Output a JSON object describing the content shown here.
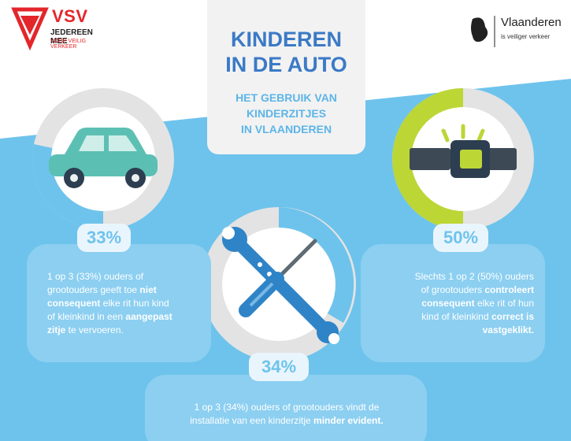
{
  "logos": {
    "vsv": {
      "name": "VSV",
      "line1": "JEDEREEN MEE",
      "line2": "VOOR VEILIG VERKEER"
    },
    "vlaanderen": {
      "name": "Vlaanderen",
      "tagline": "is veiliger verkeer"
    }
  },
  "title": {
    "main": [
      "KINDEREN",
      "IN DE AUTO"
    ],
    "sub": [
      "HET GEBRUIK VAN",
      "KINDERZITJES",
      "IN VLAANDEREN"
    ]
  },
  "stats": {
    "left": {
      "value": 33,
      "label": "33%",
      "text": [
        [
          {
            "t": "1 op 3 (33%) ouders of"
          }
        ],
        [
          {
            "t": "grootouders geeft toe "
          },
          {
            "t": "niet",
            "b": true
          }
        ],
        [
          {
            "t": "consequent",
            "b": true
          },
          {
            "t": " elke rit hun kind"
          }
        ],
        [
          {
            "t": "of kleinkind in een "
          },
          {
            "t": "aangepast",
            "b": true
          }
        ],
        [
          {
            "t": "zitje",
            "b": true
          },
          {
            "t": " te vervoeren."
          }
        ]
      ]
    },
    "right": {
      "value": 50,
      "label": "50%",
      "text": [
        [
          {
            "t": "Slechts 1 op 2 (50%) ouders"
          }
        ],
        [
          {
            "t": "of grootouders "
          },
          {
            "t": "controleert",
            "b": true
          }
        ],
        [
          {
            "t": "consequent",
            "b": true
          },
          {
            "t": " elke rit of hun"
          }
        ],
        [
          {
            "t": "kind of kleinkind "
          },
          {
            "t": "correct is",
            "b": true
          }
        ],
        [
          {
            "t": "vastgeklikt.",
            "b": true
          }
        ]
      ]
    },
    "bottom": {
      "value": 34,
      "label": "34%",
      "text": [
        [
          {
            "t": "1 op 3 (34%) ouders of grootouders vindt de"
          }
        ],
        [
          {
            "t": "installatie van een kinderzitje "
          },
          {
            "t": "minder evident.",
            "b": true
          }
        ]
      ]
    }
  },
  "colors": {
    "sky": "#6ec3ec",
    "card": "#8ccff1",
    "ringGrey": "#e3e3e3",
    "ringGreen": "#bcd636",
    "ringBlue": "#6ec3ec",
    "car": "#5cbfb3",
    "tool": "#2f84c7"
  },
  "icons": [
    "vsv-logo-icon",
    "vlaanderen-lion-icon",
    "car-icon",
    "seatbelt-buckle-icon",
    "wrench-icon",
    "screwdriver-icon"
  ]
}
